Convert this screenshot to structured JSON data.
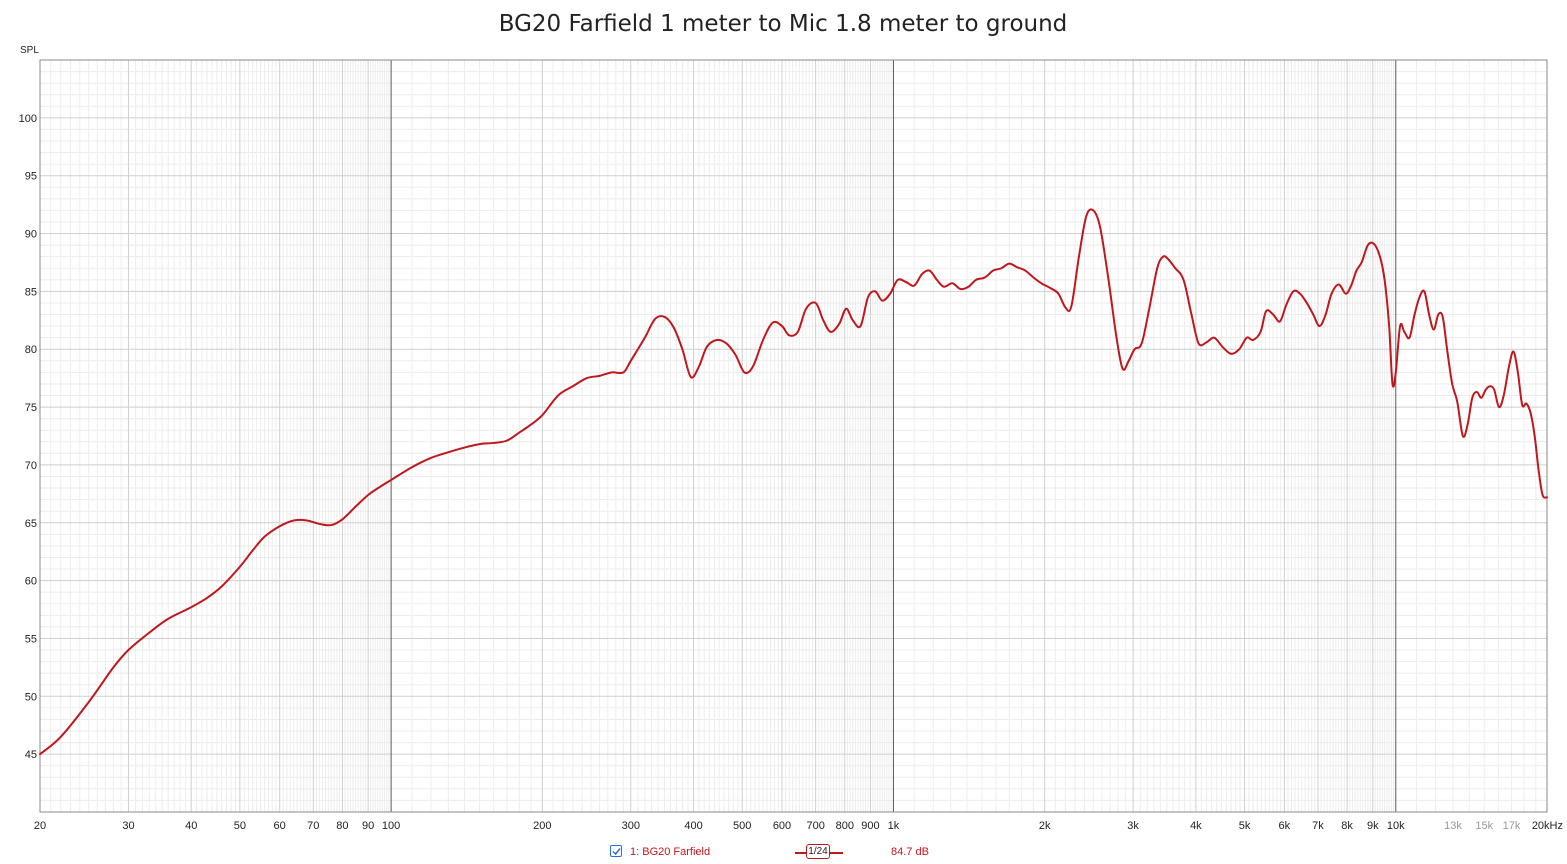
{
  "chart_data": {
    "type": "line",
    "title": "BG20 Farfield 1 meter to Mic 1.8 meter to ground",
    "ylabel": "SPL",
    "xlabel": "",
    "x_scale": "log",
    "xlim": [
      20,
      20000
    ],
    "ylim": [
      40,
      105
    ],
    "y_ticks": [
      45,
      50,
      55,
      60,
      65,
      70,
      75,
      80,
      85,
      90,
      95,
      100
    ],
    "x_tick_labels": [
      {
        "f": 20,
        "label": "20"
      },
      {
        "f": 30,
        "label": "30"
      },
      {
        "f": 40,
        "label": "40"
      },
      {
        "f": 50,
        "label": "50"
      },
      {
        "f": 60,
        "label": "60"
      },
      {
        "f": 70,
        "label": "70"
      },
      {
        "f": 80,
        "label": "80"
      },
      {
        "f": 90,
        "label": "90"
      },
      {
        "f": 100,
        "label": "100"
      },
      {
        "f": 200,
        "label": "200"
      },
      {
        "f": 300,
        "label": "300"
      },
      {
        "f": 400,
        "label": "400"
      },
      {
        "f": 500,
        "label": "500"
      },
      {
        "f": 600,
        "label": "600"
      },
      {
        "f": 700,
        "label": "700"
      },
      {
        "f": 800,
        "label": "800"
      },
      {
        "f": 900,
        "label": "900"
      },
      {
        "f": 1000,
        "label": "1k"
      },
      {
        "f": 2000,
        "label": "2k"
      },
      {
        "f": 3000,
        "label": "3k"
      },
      {
        "f": 4000,
        "label": "4k"
      },
      {
        "f": 5000,
        "label": "5k"
      },
      {
        "f": 6000,
        "label": "6k"
      },
      {
        "f": 7000,
        "label": "7k"
      },
      {
        "f": 8000,
        "label": "8k"
      },
      {
        "f": 9000,
        "label": "9k"
      },
      {
        "f": 10000,
        "label": "10k"
      },
      {
        "f": 13000,
        "label": "13k",
        "dim": true
      },
      {
        "f": 15000,
        "label": "15k",
        "dim": true
      },
      {
        "f": 17000,
        "label": "17k",
        "dim": true
      },
      {
        "f": 20000,
        "label": "20kHz"
      }
    ],
    "grid": true,
    "legend_position": "bottom-center",
    "series": [
      {
        "name": "1: BG20 Farfield",
        "color": "#c0171d",
        "points": [
          [
            20,
            45.0
          ],
          [
            22,
            46.5
          ],
          [
            25,
            49.5
          ],
          [
            28,
            52.5
          ],
          [
            30,
            54.0
          ],
          [
            33,
            55.5
          ],
          [
            36,
            56.7
          ],
          [
            40,
            57.7
          ],
          [
            43,
            58.5
          ],
          [
            46,
            59.5
          ],
          [
            50,
            61.2
          ],
          [
            53,
            62.6
          ],
          [
            56,
            63.8
          ],
          [
            60,
            64.7
          ],
          [
            64,
            65.2
          ],
          [
            68,
            65.2
          ],
          [
            72,
            64.9
          ],
          [
            76,
            64.8
          ],
          [
            80,
            65.3
          ],
          [
            85,
            66.4
          ],
          [
            90,
            67.4
          ],
          [
            95,
            68.1
          ],
          [
            100,
            68.7
          ],
          [
            110,
            69.8
          ],
          [
            120,
            70.6
          ],
          [
            130,
            71.1
          ],
          [
            140,
            71.5
          ],
          [
            150,
            71.8
          ],
          [
            160,
            71.9
          ],
          [
            170,
            72.1
          ],
          [
            180,
            72.8
          ],
          [
            190,
            73.5
          ],
          [
            200,
            74.3
          ],
          [
            215,
            76.0
          ],
          [
            230,
            76.8
          ],
          [
            245,
            77.5
          ],
          [
            260,
            77.7
          ],
          [
            275,
            78.0
          ],
          [
            290,
            78.0
          ],
          [
            300,
            79.0
          ],
          [
            320,
            81.0
          ],
          [
            335,
            82.6
          ],
          [
            350,
            82.8
          ],
          [
            365,
            81.9
          ],
          [
            380,
            80.0
          ],
          [
            395,
            77.6
          ],
          [
            410,
            78.5
          ],
          [
            425,
            80.2
          ],
          [
            445,
            80.8
          ],
          [
            465,
            80.5
          ],
          [
            485,
            79.5
          ],
          [
            505,
            78.0
          ],
          [
            525,
            78.5
          ],
          [
            550,
            80.8
          ],
          [
            575,
            82.3
          ],
          [
            600,
            82.0
          ],
          [
            620,
            81.2
          ],
          [
            645,
            81.5
          ],
          [
            670,
            83.5
          ],
          [
            700,
            84.0
          ],
          [
            725,
            82.5
          ],
          [
            750,
            81.5
          ],
          [
            780,
            82.2
          ],
          [
            805,
            83.5
          ],
          [
            830,
            82.5
          ],
          [
            860,
            82.0
          ],
          [
            890,
            84.5
          ],
          [
            920,
            85.0
          ],
          [
            950,
            84.2
          ],
          [
            985,
            84.8
          ],
          [
            1020,
            86.0
          ],
          [
            1060,
            85.8
          ],
          [
            1100,
            85.5
          ],
          [
            1140,
            86.5
          ],
          [
            1180,
            86.8
          ],
          [
            1220,
            86.0
          ],
          [
            1260,
            85.4
          ],
          [
            1310,
            85.7
          ],
          [
            1360,
            85.2
          ],
          [
            1410,
            85.4
          ],
          [
            1460,
            86.0
          ],
          [
            1520,
            86.2
          ],
          [
            1580,
            86.8
          ],
          [
            1640,
            87.0
          ],
          [
            1700,
            87.4
          ],
          [
            1760,
            87.1
          ],
          [
            1830,
            86.8
          ],
          [
            1900,
            86.2
          ],
          [
            1970,
            85.7
          ],
          [
            2050,
            85.3
          ],
          [
            2130,
            84.8
          ],
          [
            2200,
            83.6
          ],
          [
            2260,
            83.7
          ],
          [
            2340,
            88.0
          ],
          [
            2420,
            91.5
          ],
          [
            2500,
            92.0
          ],
          [
            2580,
            90.5
          ],
          [
            2680,
            86.0
          ],
          [
            2780,
            81.0
          ],
          [
            2860,
            78.3
          ],
          [
            2940,
            79.0
          ],
          [
            3020,
            80.0
          ],
          [
            3120,
            80.5
          ],
          [
            3230,
            83.5
          ],
          [
            3350,
            87.0
          ],
          [
            3440,
            88.0
          ],
          [
            3520,
            87.8
          ],
          [
            3640,
            87.0
          ],
          [
            3780,
            86.0
          ],
          [
            3920,
            83.0
          ],
          [
            4050,
            80.5
          ],
          [
            4200,
            80.6
          ],
          [
            4350,
            81.0
          ],
          [
            4520,
            80.2
          ],
          [
            4700,
            79.6
          ],
          [
            4880,
            80.0
          ],
          [
            5050,
            81.0
          ],
          [
            5200,
            80.8
          ],
          [
            5380,
            81.5
          ],
          [
            5520,
            83.3
          ],
          [
            5700,
            83.0
          ],
          [
            5880,
            82.4
          ],
          [
            6050,
            83.8
          ],
          [
            6250,
            85.0
          ],
          [
            6450,
            84.8
          ],
          [
            6650,
            84.0
          ],
          [
            6850,
            83.0
          ],
          [
            7050,
            82.0
          ],
          [
            7250,
            83.0
          ],
          [
            7450,
            84.8
          ],
          [
            7700,
            85.6
          ],
          [
            7950,
            84.8
          ],
          [
            8150,
            85.5
          ],
          [
            8350,
            86.8
          ],
          [
            8550,
            87.5
          ],
          [
            8800,
            89.0
          ],
          [
            9050,
            89.1
          ],
          [
            9300,
            88.0
          ],
          [
            9500,
            86.0
          ],
          [
            9700,
            82.0
          ],
          [
            9850,
            77.0
          ],
          [
            10000,
            78.0
          ],
          [
            10200,
            82.0
          ],
          [
            10400,
            81.5
          ],
          [
            10650,
            81.0
          ],
          [
            10900,
            83.0
          ],
          [
            11150,
            84.5
          ],
          [
            11400,
            85.0
          ],
          [
            11650,
            83.0
          ],
          [
            11900,
            81.7
          ],
          [
            12150,
            83.0
          ],
          [
            12400,
            82.8
          ],
          [
            12650,
            80.0
          ],
          [
            12950,
            77.0
          ],
          [
            13250,
            75.5
          ],
          [
            13600,
            72.5
          ],
          [
            13900,
            73.5
          ],
          [
            14200,
            75.8
          ],
          [
            14500,
            76.3
          ],
          [
            14800,
            75.8
          ],
          [
            15100,
            76.5
          ],
          [
            15400,
            76.8
          ],
          [
            15700,
            76.5
          ],
          [
            16050,
            75.0
          ],
          [
            16400,
            76.0
          ],
          [
            16800,
            78.5
          ],
          [
            17150,
            79.8
          ],
          [
            17500,
            78.0
          ],
          [
            17850,
            75.2
          ],
          [
            18200,
            75.3
          ],
          [
            18550,
            74.5
          ],
          [
            18900,
            72.5
          ],
          [
            19250,
            69.5
          ],
          [
            19600,
            67.4
          ],
          [
            20000,
            67.2
          ]
        ]
      }
    ],
    "smoothing": "1/24",
    "readout": "84.7 dB"
  }
}
